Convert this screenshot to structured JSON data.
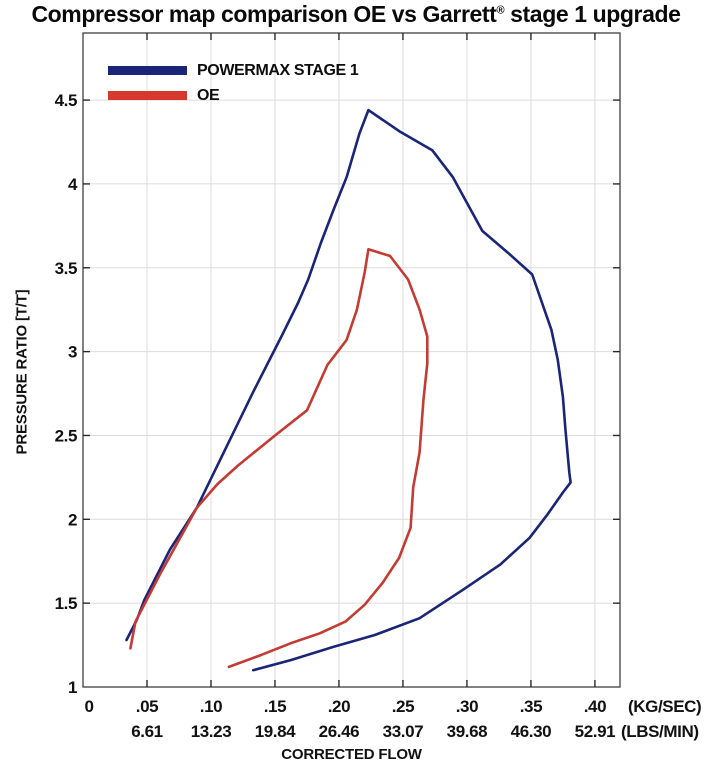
{
  "title": {
    "pre": "Compressor map comparison OE vs Garrett",
    "reg": "®",
    "post": " stage 1 upgrade"
  },
  "legend": {
    "items": [
      {
        "label": "POWERMAX STAGE 1",
        "color": "#1b2577"
      },
      {
        "label": "OE",
        "color": "#d6382d"
      }
    ]
  },
  "chart_data": {
    "type": "line",
    "title": "Compressor map comparison OE vs Garrett® stage 1 upgrade",
    "xlabel": "CORRECTED FLOW",
    "ylabel": "PRESSURE RATIO [T/T]",
    "xlim": [
      0,
      0.4196
    ],
    "ylim": [
      1,
      4.9
    ],
    "grid": true,
    "legend_position": "top-left",
    "x_ticks": {
      "values": [
        0,
        0.05,
        0.1,
        0.15,
        0.2,
        0.25,
        0.3,
        0.35,
        0.4
      ],
      "kg_sec_labels": [
        "0",
        ".05",
        ".10",
        ".15",
        ".20",
        ".25",
        ".30",
        ".35",
        ".40"
      ],
      "lbs_min_labels": [
        "",
        "6.61",
        "13.23",
        "19.84",
        "26.46",
        "33.07",
        "39.68",
        "46.30",
        "52.91"
      ],
      "kg_sec_unit": "(KG/SEC)",
      "lbs_min_unit": "(LBS/MIN)"
    },
    "y_ticks": {
      "values": [
        1,
        1.5,
        2,
        2.5,
        3,
        3.5,
        4,
        4.5
      ],
      "labels": [
        "1",
        "1.5",
        "2",
        "2.5",
        "3",
        "3.5",
        "4",
        "4.5"
      ]
    },
    "series": [
      {
        "name": "POWERMAX STAGE 1",
        "color": "#1b2577",
        "points": [
          [
            0.034,
            1.28
          ],
          [
            0.042,
            1.4
          ],
          [
            0.048,
            1.52
          ],
          [
            0.068,
            1.82
          ],
          [
            0.089,
            2.07
          ],
          [
            0.112,
            2.43
          ],
          [
            0.133,
            2.76
          ],
          [
            0.155,
            3.09
          ],
          [
            0.168,
            3.29
          ],
          [
            0.176,
            3.43
          ],
          [
            0.186,
            3.65
          ],
          [
            0.196,
            3.85
          ],
          [
            0.206,
            4.04
          ],
          [
            0.216,
            4.3
          ],
          [
            0.223,
            4.44
          ],
          [
            0.248,
            4.31
          ],
          [
            0.273,
            4.2
          ],
          [
            0.289,
            4.04
          ],
          [
            0.312,
            3.72
          ],
          [
            0.332,
            3.59
          ],
          [
            0.351,
            3.46
          ],
          [
            0.366,
            3.13
          ],
          [
            0.371,
            2.95
          ],
          [
            0.375,
            2.73
          ],
          [
            0.377,
            2.53
          ],
          [
            0.38,
            2.28
          ],
          [
            0.381,
            2.22
          ],
          [
            0.375,
            2.16
          ],
          [
            0.363,
            2.03
          ],
          [
            0.349,
            1.89
          ],
          [
            0.326,
            1.73
          ],
          [
            0.297,
            1.58
          ],
          [
            0.263,
            1.41
          ],
          [
            0.228,
            1.31
          ],
          [
            0.196,
            1.24
          ],
          [
            0.162,
            1.16
          ],
          [
            0.133,
            1.1
          ]
        ]
      },
      {
        "name": "OE",
        "color": "#c33b33",
        "points": [
          [
            0.037,
            1.23
          ],
          [
            0.041,
            1.39
          ],
          [
            0.06,
            1.67
          ],
          [
            0.089,
            2.07
          ],
          [
            0.105,
            2.21
          ],
          [
            0.121,
            2.32
          ],
          [
            0.15,
            2.5
          ],
          [
            0.175,
            2.65
          ],
          [
            0.191,
            2.92
          ],
          [
            0.206,
            3.07
          ],
          [
            0.214,
            3.25
          ],
          [
            0.22,
            3.47
          ],
          [
            0.223,
            3.61
          ],
          [
            0.24,
            3.57
          ],
          [
            0.254,
            3.43
          ],
          [
            0.263,
            3.25
          ],
          [
            0.269,
            3.09
          ],
          [
            0.269,
            2.93
          ],
          [
            0.266,
            2.71
          ],
          [
            0.263,
            2.4
          ],
          [
            0.258,
            2.19
          ],
          [
            0.256,
            1.95
          ],
          [
            0.247,
            1.77
          ],
          [
            0.234,
            1.62
          ],
          [
            0.22,
            1.49
          ],
          [
            0.205,
            1.39
          ],
          [
            0.185,
            1.32
          ],
          [
            0.162,
            1.26
          ],
          [
            0.139,
            1.19
          ],
          [
            0.114,
            1.12
          ]
        ]
      }
    ],
    "colors": {
      "grid": "#dcdcdc",
      "axis_border": "#4d4d4d",
      "tick": "#2a2a2a",
      "text": "#111111"
    }
  }
}
